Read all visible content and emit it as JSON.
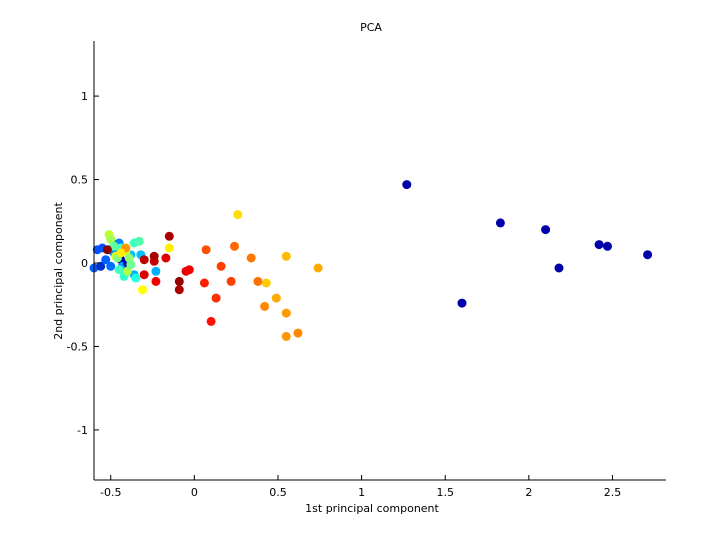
{
  "chart_data": {
    "type": "scatter",
    "title": "PCA",
    "xlabel": "1st principal component",
    "ylabel": "2nd principal component",
    "xlim": [
      -0.6,
      2.82
    ],
    "ylim": [
      -1.3,
      1.33
    ],
    "grid": false,
    "legend": "none",
    "x_ticks": [
      {
        "value": -0.5,
        "label": "-0.5"
      },
      {
        "value": 0,
        "label": "0"
      },
      {
        "value": 0.5,
        "label": "0.5"
      },
      {
        "value": 1,
        "label": "1"
      },
      {
        "value": 1.5,
        "label": "1.5"
      },
      {
        "value": 2,
        "label": "2"
      },
      {
        "value": 2.5,
        "label": "2.5"
      }
    ],
    "y_ticks": [
      {
        "value": -1,
        "label": "-1"
      },
      {
        "value": -0.5,
        "label": "-0.5"
      },
      {
        "value": 0,
        "label": "0"
      },
      {
        "value": 0.5,
        "label": "0.5"
      },
      {
        "value": 1,
        "label": "1"
      }
    ],
    "points": [
      {
        "x": 1.27,
        "y": 0.47,
        "color": "#0000aa"
      },
      {
        "x": 1.6,
        "y": -0.24,
        "color": "#0000aa"
      },
      {
        "x": 1.83,
        "y": 0.24,
        "color": "#0000aa"
      },
      {
        "x": 2.1,
        "y": 0.2,
        "color": "#0000aa"
      },
      {
        "x": 2.18,
        "y": -0.03,
        "color": "#0000aa"
      },
      {
        "x": 2.42,
        "y": 0.11,
        "color": "#0000aa"
      },
      {
        "x": 2.47,
        "y": 0.1,
        "color": "#0000aa"
      },
      {
        "x": 2.71,
        "y": 0.05,
        "color": "#0000aa"
      },
      {
        "x": -0.6,
        "y": -0.03,
        "color": "#0060ff"
      },
      {
        "x": -0.58,
        "y": 0.08,
        "color": "#0050ff"
      },
      {
        "x": -0.56,
        "y": -0.02,
        "color": "#0030cc"
      },
      {
        "x": -0.55,
        "y": 0.09,
        "color": "#0050ff"
      },
      {
        "x": -0.53,
        "y": 0.02,
        "color": "#0060ff"
      },
      {
        "x": -0.51,
        "y": 0.08,
        "color": "#0040ee"
      },
      {
        "x": -0.5,
        "y": -0.02,
        "color": "#0070ff"
      },
      {
        "x": -0.48,
        "y": 0.06,
        "color": "#0090ff"
      },
      {
        "x": -0.47,
        "y": 0.11,
        "color": "#0000cc"
      },
      {
        "x": -0.45,
        "y": 0.12,
        "color": "#0080ff"
      },
      {
        "x": -0.44,
        "y": 0.02,
        "color": "#0000aa"
      },
      {
        "x": -0.43,
        "y": -0.02,
        "color": "#00a0ff"
      },
      {
        "x": -0.4,
        "y": 0.0,
        "color": "#0000aa"
      },
      {
        "x": -0.38,
        "y": 0.05,
        "color": "#00c0ff"
      },
      {
        "x": -0.36,
        "y": -0.07,
        "color": "#00b0ff"
      },
      {
        "x": -0.32,
        "y": 0.05,
        "color": "#00c0ff"
      },
      {
        "x": -0.23,
        "y": -0.05,
        "color": "#00b0ff"
      },
      {
        "x": -0.51,
        "y": 0.17,
        "color": "#c0ff30"
      },
      {
        "x": -0.5,
        "y": 0.14,
        "color": "#a0ff50"
      },
      {
        "x": -0.48,
        "y": 0.1,
        "color": "#60ffa0"
      },
      {
        "x": -0.47,
        "y": 0.04,
        "color": "#e0ff10"
      },
      {
        "x": -0.46,
        "y": 0.03,
        "color": "#80ff80"
      },
      {
        "x": -0.45,
        "y": -0.04,
        "color": "#40ffc0"
      },
      {
        "x": -0.44,
        "y": 0.09,
        "color": "#50ffb0"
      },
      {
        "x": -0.42,
        "y": -0.08,
        "color": "#30ffd0"
      },
      {
        "x": -0.41,
        "y": 0.07,
        "color": "#d0ff20"
      },
      {
        "x": -0.4,
        "y": -0.05,
        "color": "#b0ff40"
      },
      {
        "x": -0.39,
        "y": 0.03,
        "color": "#90ff70"
      },
      {
        "x": -0.38,
        "y": -0.01,
        "color": "#70ff90"
      },
      {
        "x": -0.36,
        "y": 0.12,
        "color": "#40ffc0"
      },
      {
        "x": -0.35,
        "y": -0.09,
        "color": "#20ffe0"
      },
      {
        "x": -0.33,
        "y": 0.13,
        "color": "#50ffb0"
      },
      {
        "x": -0.31,
        "y": -0.16,
        "color": "#ffff00"
      },
      {
        "x": -0.15,
        "y": 0.09,
        "color": "#ffee00"
      },
      {
        "x": 0.26,
        "y": 0.29,
        "color": "#ffdd00"
      },
      {
        "x": 0.43,
        "y": -0.12,
        "color": "#ffcc00"
      },
      {
        "x": 0.55,
        "y": 0.04,
        "color": "#ffbb00"
      },
      {
        "x": 0.74,
        "y": -0.03,
        "color": "#ffaa00"
      },
      {
        "x": 0.49,
        "y": -0.21,
        "color": "#ffaa00"
      },
      {
        "x": 0.55,
        "y": -0.3,
        "color": "#ff9900"
      },
      {
        "x": 0.55,
        "y": -0.44,
        "color": "#ff9900"
      },
      {
        "x": 0.62,
        "y": -0.42,
        "color": "#ff8800"
      },
      {
        "x": 0.42,
        "y": -0.26,
        "color": "#ff8800"
      },
      {
        "x": 0.34,
        "y": 0.03,
        "color": "#ff7700"
      },
      {
        "x": 0.38,
        "y": -0.11,
        "color": "#ff7000"
      },
      {
        "x": 0.24,
        "y": 0.1,
        "color": "#ff6600"
      },
      {
        "x": 0.07,
        "y": 0.08,
        "color": "#ff5000"
      },
      {
        "x": 0.16,
        "y": -0.02,
        "color": "#ff4000"
      },
      {
        "x": 0.22,
        "y": -0.11,
        "color": "#ff4000"
      },
      {
        "x": 0.13,
        "y": -0.21,
        "color": "#ff3000"
      },
      {
        "x": 0.06,
        "y": -0.12,
        "color": "#ff2000"
      },
      {
        "x": 0.1,
        "y": -0.35,
        "color": "#ff1000"
      },
      {
        "x": -0.03,
        "y": -0.04,
        "color": "#ee0000"
      },
      {
        "x": -0.05,
        "y": -0.05,
        "color": "#ee0000"
      },
      {
        "x": -0.17,
        "y": 0.03,
        "color": "#dd0000"
      },
      {
        "x": -0.23,
        "y": -0.11,
        "color": "#ee0000"
      },
      {
        "x": -0.24,
        "y": 0.01,
        "color": "#cc0000"
      },
      {
        "x": -0.24,
        "y": 0.04,
        "color": "#aa0000"
      },
      {
        "x": -0.3,
        "y": -0.07,
        "color": "#dd0000"
      },
      {
        "x": -0.3,
        "y": 0.02,
        "color": "#bb0000"
      },
      {
        "x": -0.15,
        "y": 0.16,
        "color": "#aa0000"
      },
      {
        "x": -0.09,
        "y": -0.11,
        "color": "#990000"
      },
      {
        "x": -0.09,
        "y": -0.16,
        "color": "#aa0000"
      },
      {
        "x": -0.52,
        "y": 0.08,
        "color": "#880000"
      },
      {
        "x": -0.41,
        "y": 0.09,
        "color": "#ff9900"
      },
      {
        "x": -0.44,
        "y": 0.06,
        "color": "#ffee00"
      }
    ]
  }
}
